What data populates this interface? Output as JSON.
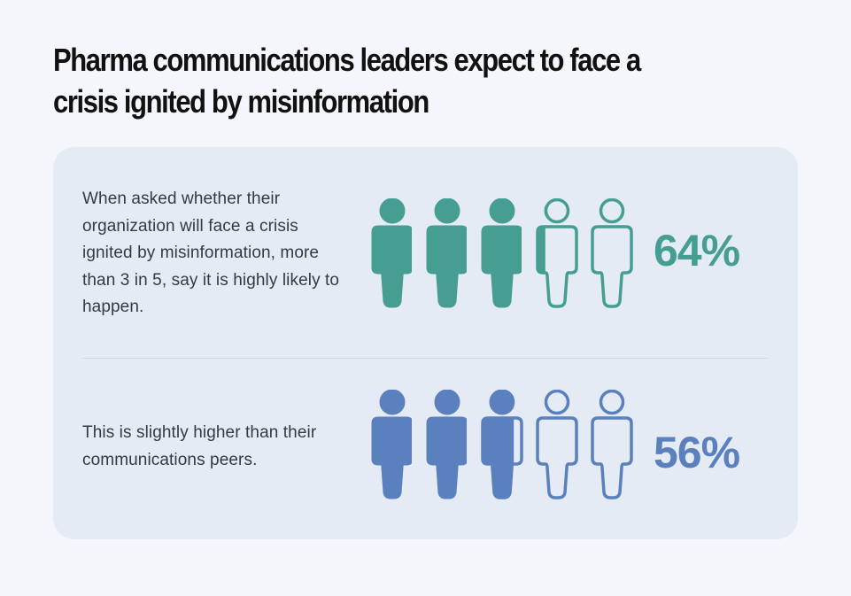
{
  "title": "Pharma communications leaders expect to face a crisis ignited by misinformation",
  "colors": {
    "background": "#f4f6fb",
    "panel": "#e4ebf5",
    "pharma": "#469e93",
    "peers": "#5a80bd",
    "text": "#333a44",
    "title": "#111111"
  },
  "rows": [
    {
      "description": "When asked whether their organization will face a crisis ignited by misinformation, more than 3 in 5, say it is highly likely to happen.",
      "percent_label": "64%",
      "icon": "person-icon",
      "color": "#469e93"
    },
    {
      "description": "This is slightly higher than their communications peers.",
      "percent_label": "56%",
      "icon": "person-icon",
      "color": "#5a80bd"
    }
  ],
  "chart_data": {
    "type": "pictogram",
    "title": "Pharma communications leaders expect to face a crisis ignited by misinformation",
    "icons_per_row": 5,
    "icon_unit_percent": 20,
    "series": [
      {
        "name": "Pharma communications leaders",
        "value": 64,
        "label": "64%",
        "color": "#469e93",
        "filled_icons": 3.2
      },
      {
        "name": "Communications peers",
        "value": 56,
        "label": "56%",
        "color": "#5a80bd",
        "filled_icons": 2.8
      }
    ]
  }
}
